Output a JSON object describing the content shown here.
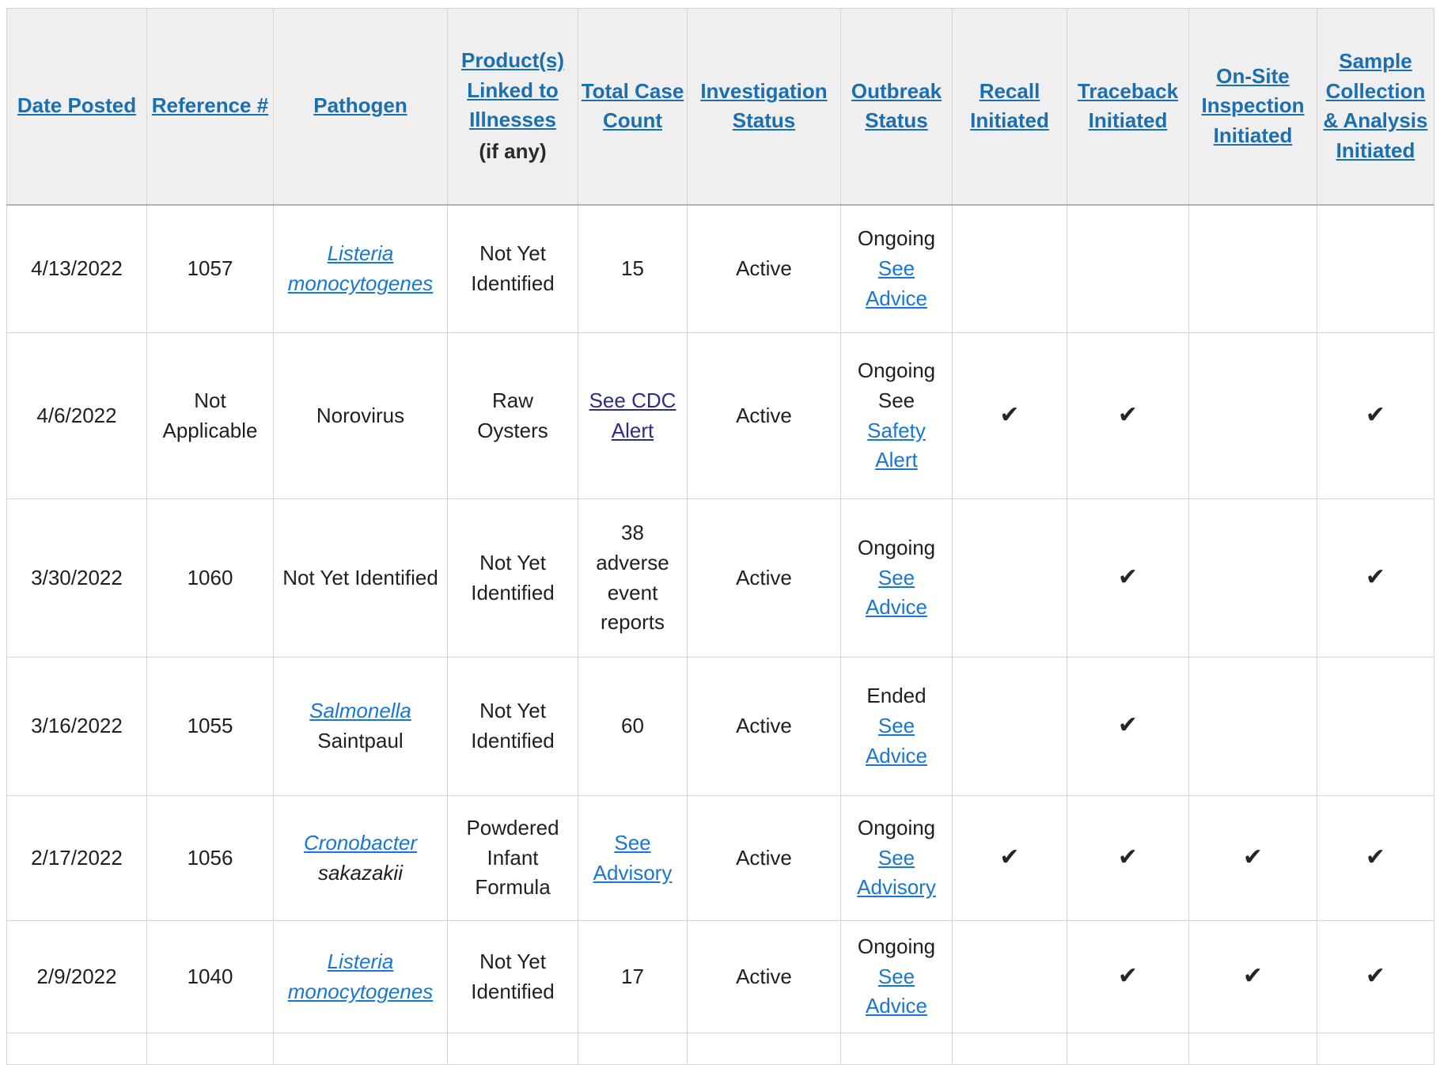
{
  "table": {
    "check_glyph": "✔",
    "colors": {
      "header_link": "#1b6fb1",
      "body_link": "#1877d2",
      "visited_link": "#2b2e86",
      "text": "#1f1f1f",
      "header_bg": "#efefef",
      "border": "#d4d4d4"
    },
    "columns": [
      {
        "id": "date",
        "label": "Date Posted"
      },
      {
        "id": "reference",
        "label": "Reference #"
      },
      {
        "id": "pathogen",
        "label": "Pathogen"
      },
      {
        "id": "product",
        "label": "Product(s) Linked to Illnesses",
        "note": "(if any)"
      },
      {
        "id": "total",
        "label": "Total Case Count"
      },
      {
        "id": "investigation",
        "label": "Investigation Status"
      },
      {
        "id": "outbreak",
        "label": "Outbreak Status"
      },
      {
        "id": "recall",
        "label": "Recall Initiated"
      },
      {
        "id": "traceback",
        "label": "Traceback Initiated"
      },
      {
        "id": "onsite",
        "label": "On-Site Inspection Initiated"
      },
      {
        "id": "sample",
        "label": "Sample Collection & Analysis Initiated"
      }
    ],
    "rows": [
      {
        "cells": {
          "date": [
            {
              "text": "4/13/2022"
            }
          ],
          "reference": [
            {
              "text": "1057"
            }
          ],
          "pathogen": [
            {
              "text": "Listeria monocytogenes",
              "link": true,
              "italic": true
            }
          ],
          "product": [
            {
              "text": "Not Yet Identified"
            }
          ],
          "total": [
            {
              "text": "15"
            }
          ],
          "investigation": [
            {
              "text": "Active"
            }
          ],
          "outbreak": [
            {
              "text": "Ongoing"
            },
            {
              "text": "See Advice",
              "link": true
            }
          ],
          "recall": false,
          "traceback": false,
          "onsite": false,
          "sample": false
        }
      },
      {
        "cells": {
          "date": [
            {
              "text": "4/6/2022"
            }
          ],
          "reference": [
            {
              "text": "Not Applicable"
            }
          ],
          "pathogen": [
            {
              "text": "Norovirus"
            }
          ],
          "product": [
            {
              "text": "Raw Oysters"
            }
          ],
          "total": [
            {
              "text": "See CDC Alert",
              "link": true,
              "visited": true
            }
          ],
          "investigation": [
            {
              "text": "Active"
            }
          ],
          "outbreak": [
            {
              "text": "Ongoing See"
            },
            {
              "text": "Safety Alert",
              "link": true
            }
          ],
          "recall": true,
          "traceback": true,
          "onsite": false,
          "sample": true
        }
      },
      {
        "cells": {
          "date": [
            {
              "text": "3/30/2022"
            }
          ],
          "reference": [
            {
              "text": "1060"
            }
          ],
          "pathogen": [
            {
              "text": "Not Yet Identified"
            }
          ],
          "product": [
            {
              "text": "Not Yet Identified"
            }
          ],
          "total": [
            {
              "text": "38 adverse event reports"
            }
          ],
          "investigation": [
            {
              "text": "Active"
            }
          ],
          "outbreak": [
            {
              "text": "Ongoing"
            },
            {
              "text": "See Advice",
              "link": true
            }
          ],
          "recall": false,
          "traceback": true,
          "onsite": false,
          "sample": true
        }
      },
      {
        "cells": {
          "date": [
            {
              "text": "3/16/2022"
            }
          ],
          "reference": [
            {
              "text": "1055"
            }
          ],
          "pathogen": [
            {
              "text": "Salmonella",
              "link": true,
              "italic": true
            },
            {
              "text": "Saintpaul"
            }
          ],
          "product": [
            {
              "text": "Not Yet Identified"
            }
          ],
          "total": [
            {
              "text": "60"
            }
          ],
          "investigation": [
            {
              "text": "Active"
            }
          ],
          "outbreak": [
            {
              "text": "Ended"
            },
            {
              "text": "See Advice",
              "link": true
            }
          ],
          "recall": false,
          "traceback": true,
          "onsite": false,
          "sample": false
        }
      },
      {
        "cells": {
          "date": [
            {
              "text": "2/17/2022"
            }
          ],
          "reference": [
            {
              "text": "1056"
            }
          ],
          "pathogen": [
            {
              "text": "Cronobacter",
              "link": true,
              "italic": true
            },
            {
              "text": "sakazakii",
              "italic": true
            }
          ],
          "product": [
            {
              "text": "Powdered Infant Formula"
            }
          ],
          "total": [
            {
              "text": "See Advisory",
              "link": true
            }
          ],
          "investigation": [
            {
              "text": "Active"
            }
          ],
          "outbreak": [
            {
              "text": "Ongoing"
            },
            {
              "text": "See Advisory",
              "link": true
            }
          ],
          "recall": true,
          "traceback": true,
          "onsite": true,
          "sample": true
        }
      },
      {
        "cells": {
          "date": [
            {
              "text": "2/9/2022"
            }
          ],
          "reference": [
            {
              "text": "1040"
            }
          ],
          "pathogen": [
            {
              "text": "Listeria monocytogenes",
              "link": true,
              "italic": true
            }
          ],
          "product": [
            {
              "text": "Not Yet Identified"
            }
          ],
          "total": [
            {
              "text": "17"
            }
          ],
          "investigation": [
            {
              "text": "Active"
            }
          ],
          "outbreak": [
            {
              "text": "Ongoing"
            },
            {
              "text": "See Advice",
              "link": true
            }
          ],
          "recall": false,
          "traceback": true,
          "onsite": true,
          "sample": true
        }
      }
    ]
  }
}
